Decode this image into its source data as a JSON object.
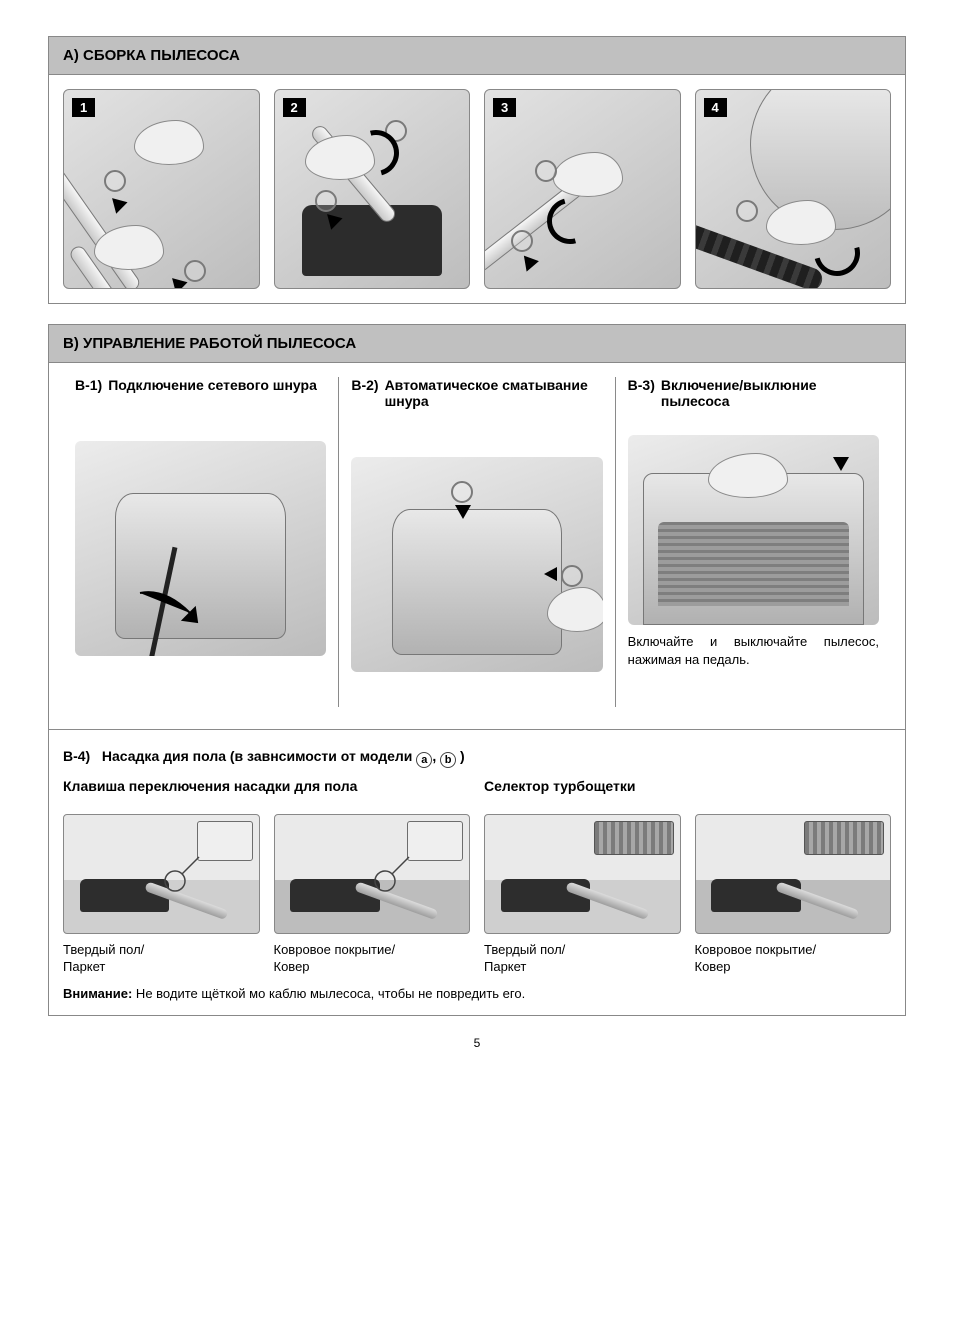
{
  "section_a": {
    "title": "А) СБОРКА ПЫЛЕСОСА",
    "steps": [
      "1",
      "2",
      "3",
      "4"
    ]
  },
  "section_b": {
    "title": "В) УПРАВЛЕНИЕ РАБОТОЙ ПЫЛЕСОСА",
    "b1": {
      "num": "В-1)",
      "title": "Подключение сетевого шнура"
    },
    "b2": {
      "num": "В-2)",
      "title": "Автоматическое сматывание шнура"
    },
    "b3": {
      "num": "В-3)",
      "title": "Включение/выклюние пылесоса",
      "caption": "Включайте и выключайте пылесос, нажимая на педаль."
    },
    "b4": {
      "num": "В-4)",
      "title_prefix": "Насадка дия пола (в завнсимости от модели ",
      "title_mid": ", ",
      "title_suffix": " )",
      "marker_a": "a",
      "marker_b": "b",
      "left_sub": "Клавиша переключения насадки для пола",
      "right_sub": "Селектор турбощетки",
      "captions": [
        "Твердый пол/\nПаркет",
        "Ковровое покрытие/\nКовер",
        "Твердый пол/\nПаркет",
        "Ковровое покрытие/\nКовер"
      ],
      "warning_label": "Внимание:",
      "warning_text": " Не водите щёткой мо каблю мылесоса, чтобы не повредить его."
    }
  },
  "page_number": "5",
  "colors": {
    "header_bg": "#c0c0c0",
    "border": "#888888",
    "badge_bg": "#000000",
    "badge_fg": "#ffffff",
    "page_bg": "#ffffff",
    "text": "#000000"
  },
  "illustrations": {
    "note": "Grayscale technical line drawings of vacuum-cleaner assembly, cord management, power pedal, and floor-nozzle selector. Reproduced as placeholder shapes."
  }
}
